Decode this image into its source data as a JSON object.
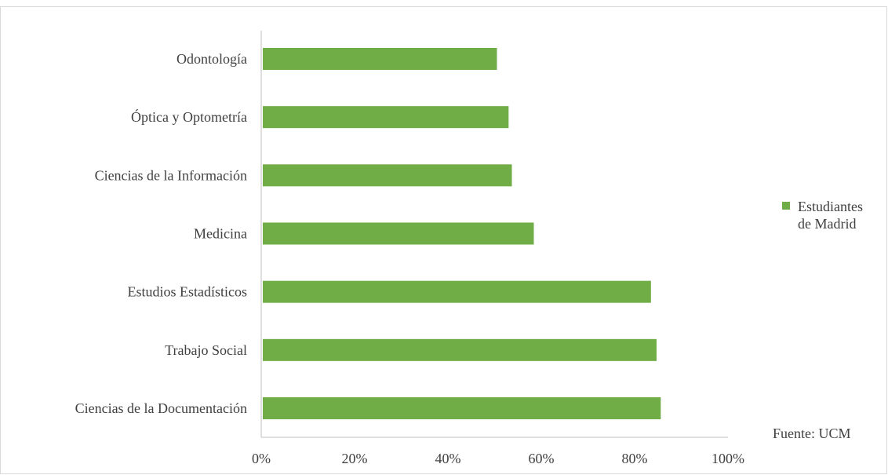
{
  "chart_data": {
    "type": "bar",
    "orientation": "horizontal",
    "categories": [
      "Odontología",
      "Óptica y Optometría",
      "Ciencias de la Información",
      "Medicina",
      "Estudios Estadísticos",
      "Trabajo Social",
      "Ciencias de la Documentación"
    ],
    "series": [
      {
        "name": "Estudiantes de Madrid",
        "legend_lines": [
          "Estudiantes",
          "de Madrid"
        ],
        "color": "#70ad47",
        "values": [
          0.505,
          0.53,
          0.537,
          0.584,
          0.835,
          0.847,
          0.856
        ]
      }
    ],
    "xlim": [
      0,
      1
    ],
    "x_ticks": [
      0,
      0.2,
      0.4,
      0.6,
      0.8,
      1.0
    ],
    "x_tick_labels": [
      "0%",
      "20%",
      "40%",
      "60%",
      "80%",
      "100%"
    ],
    "title": "",
    "xlabel": "",
    "ylabel": "",
    "grid": false,
    "legend_position": "right",
    "source_note": "Fuente: UCM",
    "colors": {
      "bar": "#70ad47",
      "axis": "#bfbfbf",
      "text": "#404040"
    }
  }
}
